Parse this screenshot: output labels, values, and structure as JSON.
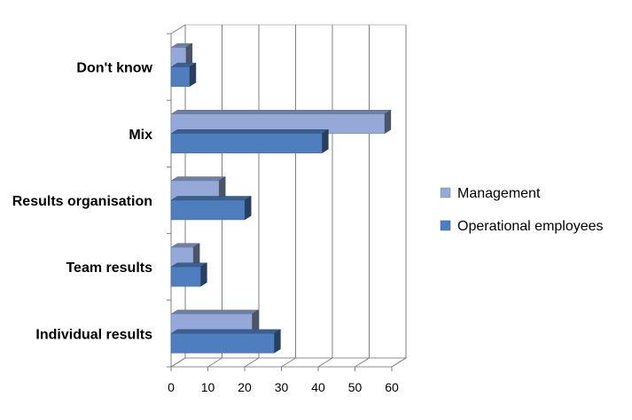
{
  "chart_data": {
    "type": "bar",
    "orientation": "horizontal",
    "style": "3d-clustered",
    "title": "",
    "xlabel": "",
    "ylabel": "",
    "categories": [
      "Individual results",
      "Team results",
      "Results organisation",
      "Mix",
      "Don't know"
    ],
    "series": [
      {
        "name": "Management",
        "values": [
          22,
          6,
          13,
          58,
          4
        ],
        "color": "#94A9D8"
      },
      {
        "name": "Operational employees",
        "values": [
          28,
          8,
          20,
          41,
          5
        ],
        "color": "#4F7EBF"
      }
    ],
    "xlim": [
      0,
      60
    ],
    "x_ticks": [
      "0",
      "10",
      "20",
      "30",
      "40",
      "50",
      "60"
    ],
    "grid": "vertical",
    "legend_position": "right"
  }
}
